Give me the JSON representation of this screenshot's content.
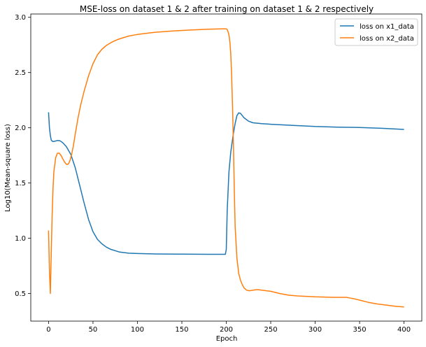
{
  "chart_data": {
    "type": "line",
    "title": "MSE-loss on dataset 1 & 2 after training on dataset 1 & 2 respectively",
    "xlabel": "Epoch",
    "ylabel": "Log10(Mean-square loss)",
    "xlim": [
      -20,
      420
    ],
    "ylim": [
      0.25,
      3.03
    ],
    "xticks": [
      0,
      50,
      100,
      150,
      200,
      250,
      300,
      350,
      400
    ],
    "yticks": [
      0.5,
      1.0,
      1.5,
      2.0,
      2.5,
      3.0
    ],
    "xtick_labels": [
      "0",
      "50",
      "100",
      "150",
      "200",
      "250",
      "300",
      "350",
      "400"
    ],
    "ytick_labels": [
      "0.5",
      "1.0",
      "1.5",
      "2.0",
      "2.5",
      "3.0"
    ],
    "grid": false,
    "legend_position": "top-right",
    "series": [
      {
        "name": "loss on x1_data",
        "color": "#1f77b4",
        "x": [
          0,
          1,
          2,
          3,
          4,
          5,
          7,
          10,
          13,
          16,
          20,
          25,
          30,
          35,
          40,
          45,
          50,
          55,
          60,
          65,
          70,
          80,
          90,
          100,
          120,
          150,
          180,
          199,
          200,
          201,
          203,
          205,
          208,
          210,
          212,
          214,
          216,
          218,
          220,
          225,
          230,
          240,
          250,
          275,
          300,
          325,
          350,
          375,
          400
        ],
        "y": [
          2.14,
          2.0,
          1.93,
          1.89,
          1.88,
          1.875,
          1.878,
          1.885,
          1.882,
          1.865,
          1.83,
          1.76,
          1.64,
          1.48,
          1.32,
          1.17,
          1.06,
          0.99,
          0.95,
          0.92,
          0.9,
          0.875,
          0.865,
          0.862,
          0.858,
          0.856,
          0.855,
          0.855,
          0.9,
          1.25,
          1.6,
          1.78,
          1.95,
          2.04,
          2.11,
          2.135,
          2.13,
          2.11,
          2.09,
          2.06,
          2.045,
          2.038,
          2.032,
          2.022,
          2.012,
          2.006,
          2.003,
          1.995,
          1.985
        ]
      },
      {
        "name": "loss on x2_data",
        "color": "#ff7f0e",
        "x": [
          0,
          1,
          2,
          3,
          4,
          5,
          6,
          8,
          10,
          12,
          14,
          16,
          18,
          20,
          22,
          24,
          26,
          28,
          30,
          33,
          36,
          40,
          45,
          50,
          55,
          60,
          65,
          70,
          75,
          80,
          90,
          100,
          110,
          120,
          140,
          160,
          180,
          195,
          199,
          200,
          201,
          202,
          203,
          204,
          205,
          206,
          207,
          208,
          209,
          210,
          212,
          214,
          216,
          218,
          220,
          223,
          226,
          230,
          235,
          240,
          250,
          260,
          270,
          280,
          300,
          320,
          335,
          340,
          345,
          350,
          360,
          370,
          380,
          390,
          400
        ],
        "y": [
          1.07,
          0.7,
          0.5,
          0.85,
          1.2,
          1.45,
          1.6,
          1.73,
          1.77,
          1.77,
          1.75,
          1.72,
          1.69,
          1.67,
          1.67,
          1.7,
          1.76,
          1.84,
          1.94,
          2.08,
          2.2,
          2.33,
          2.47,
          2.58,
          2.66,
          2.71,
          2.745,
          2.77,
          2.79,
          2.805,
          2.83,
          2.845,
          2.855,
          2.865,
          2.877,
          2.885,
          2.892,
          2.895,
          2.895,
          2.895,
          2.89,
          2.87,
          2.84,
          2.78,
          2.67,
          2.48,
          2.2,
          1.85,
          1.45,
          1.1,
          0.82,
          0.68,
          0.62,
          0.58,
          0.55,
          0.53,
          0.525,
          0.53,
          0.535,
          0.53,
          0.52,
          0.5,
          0.485,
          0.478,
          0.47,
          0.465,
          0.465,
          0.458,
          0.45,
          0.44,
          0.42,
          0.405,
          0.395,
          0.385,
          0.378
        ]
      }
    ]
  }
}
